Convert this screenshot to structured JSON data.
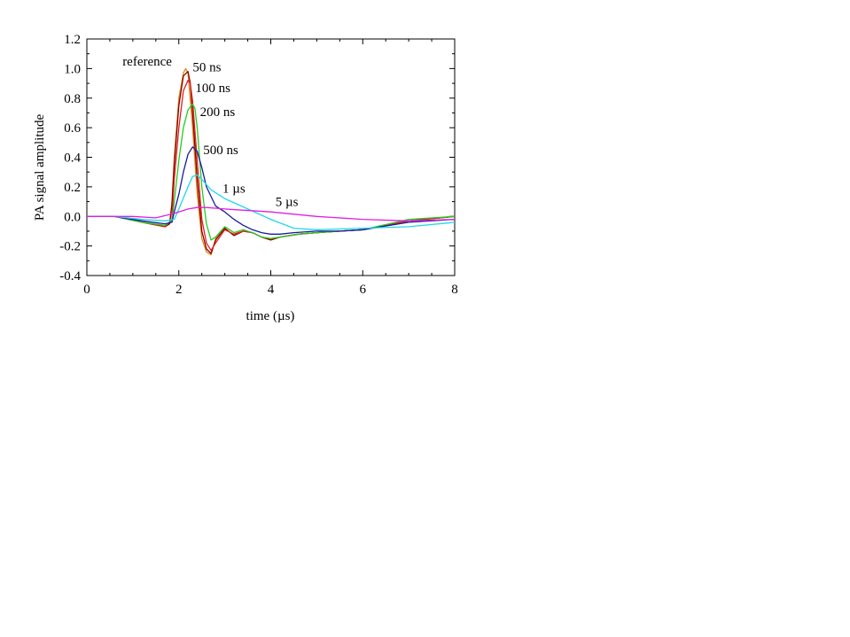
{
  "chart_data": {
    "type": "line",
    "xlabel": "time (µs)",
    "ylabel": "PA signal amplitude",
    "xlim": [
      0,
      8
    ],
    "ylim": [
      -0.4,
      1.2
    ],
    "x_ticks": [
      "0",
      "2",
      "4",
      "6",
      "8"
    ],
    "y_ticks": [
      "-0.4",
      "-0.2",
      "0.0",
      "0.2",
      "0.4",
      "0.6",
      "0.8",
      "1.0",
      "1.2"
    ],
    "grid": false,
    "legend": "inline labels",
    "series": [
      {
        "name": "reference",
        "color": "#d98a1a",
        "x": [
          0,
          0.6,
          1.2,
          1.7,
          1.8,
          1.85,
          1.9,
          2.0,
          2.1,
          2.15,
          2.2,
          2.3,
          2.4,
          2.5,
          2.6,
          2.7,
          2.8,
          3.0,
          3.2,
          3.4,
          3.6,
          3.8,
          4.0,
          4.2,
          4.6,
          5.0,
          5.5,
          6.0,
          7.0,
          8.0
        ],
        "y": [
          0.0,
          0.0,
          -0.04,
          -0.07,
          -0.05,
          0.1,
          0.4,
          0.8,
          0.97,
          1.0,
          0.97,
          0.6,
          0.15,
          -0.15,
          -0.24,
          -0.26,
          -0.15,
          -0.08,
          -0.13,
          -0.1,
          -0.11,
          -0.14,
          -0.16,
          -0.14,
          -0.12,
          -0.11,
          -0.1,
          -0.09,
          -0.03,
          0.0
        ]
      },
      {
        "name": "50 ns",
        "color": "#8b0000",
        "x": [
          0,
          0.6,
          1.2,
          1.7,
          1.8,
          1.85,
          1.9,
          2.0,
          2.1,
          2.2,
          2.25,
          2.3,
          2.4,
          2.5,
          2.6,
          2.7,
          2.8,
          3.0,
          3.2,
          3.4,
          3.6,
          3.8,
          4.0,
          4.2,
          4.6,
          5.0,
          5.5,
          6.0,
          7.0,
          8.0
        ],
        "y": [
          0.0,
          0.0,
          -0.04,
          -0.07,
          -0.05,
          0.08,
          0.35,
          0.75,
          0.95,
          0.98,
          0.9,
          0.7,
          0.25,
          -0.1,
          -0.22,
          -0.25,
          -0.16,
          -0.08,
          -0.13,
          -0.1,
          -0.11,
          -0.14,
          -0.16,
          -0.14,
          -0.12,
          -0.11,
          -0.1,
          -0.09,
          -0.03,
          0.0
        ]
      },
      {
        "name": "100 ns",
        "color": "#e02020",
        "x": [
          0,
          0.6,
          1.2,
          1.7,
          1.85,
          1.9,
          2.0,
          2.1,
          2.2,
          2.25,
          2.3,
          2.4,
          2.5,
          2.6,
          2.7,
          2.8,
          3.0,
          3.2,
          3.4,
          3.6,
          3.8,
          4.0,
          4.2,
          4.6,
          5.0,
          5.5,
          6.0,
          7.0,
          8.0
        ],
        "y": [
          0.0,
          0.0,
          -0.04,
          -0.07,
          -0.02,
          0.25,
          0.6,
          0.85,
          0.92,
          0.9,
          0.78,
          0.38,
          -0.02,
          -0.18,
          -0.23,
          -0.18,
          -0.09,
          -0.12,
          -0.1,
          -0.11,
          -0.14,
          -0.15,
          -0.14,
          -0.12,
          -0.11,
          -0.1,
          -0.09,
          -0.03,
          0.0
        ]
      },
      {
        "name": "200 ns",
        "color": "#22cc22",
        "x": [
          0,
          0.6,
          1.2,
          1.7,
          1.85,
          1.9,
          2.0,
          2.1,
          2.2,
          2.3,
          2.35,
          2.4,
          2.5,
          2.6,
          2.7,
          2.8,
          3.0,
          3.2,
          3.4,
          3.6,
          3.8,
          4.0,
          4.2,
          4.6,
          5.0,
          5.5,
          6.0,
          7.0,
          8.0
        ],
        "y": [
          0.0,
          0.0,
          -0.04,
          -0.06,
          -0.03,
          0.1,
          0.38,
          0.6,
          0.72,
          0.76,
          0.73,
          0.6,
          0.2,
          -0.05,
          -0.16,
          -0.14,
          -0.07,
          -0.11,
          -0.09,
          -0.11,
          -0.14,
          -0.15,
          -0.14,
          -0.12,
          -0.11,
          -0.1,
          -0.09,
          -0.02,
          0.0
        ]
      },
      {
        "name": "500 ns",
        "color": "#1a1aa0",
        "x": [
          0,
          0.6,
          1.2,
          1.7,
          1.85,
          1.9,
          2.0,
          2.1,
          2.2,
          2.3,
          2.4,
          2.5,
          2.6,
          2.8,
          3.0,
          3.2,
          3.4,
          3.6,
          3.8,
          4.0,
          4.2,
          4.5,
          5.0,
          5.5,
          6.0,
          7.0,
          8.0
        ],
        "y": [
          0.0,
          0.0,
          -0.03,
          -0.05,
          -0.04,
          0.03,
          0.15,
          0.3,
          0.42,
          0.47,
          0.44,
          0.33,
          0.2,
          0.07,
          0.03,
          -0.02,
          -0.06,
          -0.09,
          -0.11,
          -0.12,
          -0.12,
          -0.11,
          -0.1,
          -0.1,
          -0.09,
          -0.04,
          -0.02
        ]
      },
      {
        "name": "1 µs",
        "color": "#20d8e8",
        "x": [
          0,
          0.6,
          1.2,
          1.7,
          1.9,
          2.0,
          2.2,
          2.3,
          2.4,
          2.5,
          2.7,
          3.0,
          3.5,
          4.0,
          4.5,
          5.0,
          6.0,
          7.0,
          8.0
        ],
        "y": [
          0.0,
          0.0,
          -0.02,
          -0.03,
          -0.02,
          0.05,
          0.2,
          0.27,
          0.28,
          0.25,
          0.18,
          0.12,
          0.05,
          -0.02,
          -0.08,
          -0.09,
          -0.08,
          -0.07,
          -0.04
        ]
      },
      {
        "name": "5 µs",
        "color": "#e020e0",
        "x": [
          0,
          0.6,
          1.0,
          1.5,
          1.9,
          2.2,
          2.4,
          2.6,
          3.0,
          4.0,
          5.0,
          6.0,
          7.0,
          8.0
        ],
        "y": [
          0.0,
          0.0,
          0.0,
          -0.01,
          0.02,
          0.05,
          0.06,
          0.06,
          0.05,
          0.03,
          0.0,
          -0.02,
          -0.03,
          -0.02
        ]
      }
    ],
    "labels": [
      {
        "text": "reference",
        "x": 1.85,
        "y": 1.02
      },
      {
        "text": "50 ns",
        "x": 2.3,
        "y": 0.98
      },
      {
        "text": "100 ns",
        "x": 2.36,
        "y": 0.84
      },
      {
        "text": "200 ns",
        "x": 2.46,
        "y": 0.68
      },
      {
        "text": "500 ns",
        "x": 2.53,
        "y": 0.42
      },
      {
        "text": "1 µs",
        "x": 2.95,
        "y": 0.16
      },
      {
        "text": "5 µs",
        "x": 4.1,
        "y": 0.07
      }
    ]
  }
}
